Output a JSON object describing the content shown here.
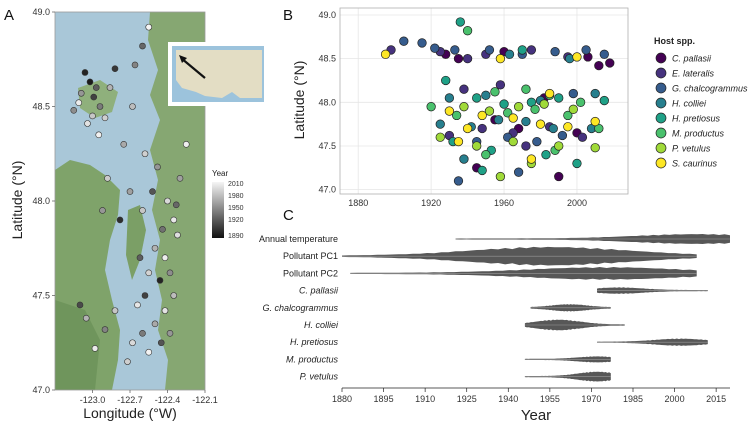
{
  "panels": {
    "a": "A",
    "b": "B",
    "c": "C"
  },
  "colors": {
    "water": "#a9c7d8",
    "land": "#7fa36a",
    "inset_water": "#9cc3dc",
    "inset_land": "#e3ddc4",
    "grid": "#e6e6e6",
    "axis": "#9a9a9a"
  },
  "chart_data": [
    {
      "id": "map",
      "type": "scatter",
      "title": "",
      "xlabel": "Longitude (°W)",
      "ylabel": "Latitude (°N)",
      "xlim": [
        -123.3,
        -122.1
      ],
      "ylim": [
        47.0,
        49.0
      ],
      "xticks": [
        -123.0,
        -122.7,
        -122.4,
        -122.1
      ],
      "xtick_labels": [
        "-123.0",
        "-122.7",
        "-122.4",
        "-122.1"
      ],
      "yticks": [
        47.0,
        47.5,
        48.0,
        48.5,
        49.0
      ],
      "ytick_labels": [
        "47.0",
        "47.5",
        "48.0",
        "48.5",
        "49.0"
      ],
      "legend": {
        "title": "Year",
        "labels": [
          "2010",
          "1980",
          "1950",
          "1920",
          "1890"
        ],
        "range": [
          1890,
          2010
        ],
        "placement": "right"
      },
      "points": [
        {
          "lon": -123.06,
          "lat": 48.68,
          "year": 1900
        },
        {
          "lon": -123.02,
          "lat": 48.63,
          "year": 1895
        },
        {
          "lon": -122.97,
          "lat": 48.6,
          "year": 1930
        },
        {
          "lon": -123.09,
          "lat": 48.57,
          "year": 1960
        },
        {
          "lon": -123.11,
          "lat": 48.52,
          "year": 2005
        },
        {
          "lon": -122.99,
          "lat": 48.55,
          "year": 1915
        },
        {
          "lon": -122.94,
          "lat": 48.5,
          "year": 1945
        },
        {
          "lon": -123.0,
          "lat": 48.45,
          "year": 1985
        },
        {
          "lon": -123.04,
          "lat": 48.41,
          "year": 2000
        },
        {
          "lon": -122.9,
          "lat": 48.44,
          "year": 1990
        },
        {
          "lon": -122.86,
          "lat": 48.6,
          "year": 1975
        },
        {
          "lon": -122.82,
          "lat": 48.7,
          "year": 1910
        },
        {
          "lon": -123.15,
          "lat": 48.48,
          "year": 1955
        },
        {
          "lon": -122.95,
          "lat": 48.35,
          "year": 2008
        },
        {
          "lon": -122.75,
          "lat": 48.3,
          "year": 1970
        },
        {
          "lon": -122.68,
          "lat": 48.5,
          "year": 1980
        },
        {
          "lon": -122.6,
          "lat": 48.82,
          "year": 1935
        },
        {
          "lon": -122.55,
          "lat": 48.92,
          "year": 2010
        },
        {
          "lon": -122.66,
          "lat": 48.72,
          "year": 1950
        },
        {
          "lon": -122.58,
          "lat": 48.25,
          "year": 1990
        },
        {
          "lon": -122.48,
          "lat": 48.18,
          "year": 1960
        },
        {
          "lon": -122.52,
          "lat": 48.05,
          "year": 1925
        },
        {
          "lon": -122.4,
          "lat": 48.0,
          "year": 1995
        },
        {
          "lon": -122.35,
          "lat": 47.9,
          "year": 2003
        },
        {
          "lon": -122.44,
          "lat": 47.85,
          "year": 1940
        },
        {
          "lon": -122.6,
          "lat": 47.95,
          "year": 1985
        },
        {
          "lon": -122.7,
          "lat": 48.05,
          "year": 1965
        },
        {
          "lon": -122.78,
          "lat": 47.9,
          "year": 1905
        },
        {
          "lon": -122.5,
          "lat": 47.75,
          "year": 1975
        },
        {
          "lon": -122.42,
          "lat": 47.7,
          "year": 2006
        },
        {
          "lon": -122.38,
          "lat": 47.62,
          "year": 1955
        },
        {
          "lon": -122.46,
          "lat": 47.58,
          "year": 1900
        },
        {
          "lon": -122.55,
          "lat": 47.62,
          "year": 1992
        },
        {
          "lon": -122.62,
          "lat": 47.7,
          "year": 1930
        },
        {
          "lon": -122.35,
          "lat": 47.5,
          "year": 1980
        },
        {
          "lon": -122.42,
          "lat": 47.42,
          "year": 2001
        },
        {
          "lon": -122.5,
          "lat": 47.35,
          "year": 1970
        },
        {
          "lon": -122.6,
          "lat": 47.3,
          "year": 1945
        },
        {
          "lon": -122.68,
          "lat": 47.25,
          "year": 1995
        },
        {
          "lon": -122.55,
          "lat": 47.2,
          "year": 2009
        },
        {
          "lon": -122.45,
          "lat": 47.25,
          "year": 1925
        },
        {
          "lon": -122.38,
          "lat": 47.3,
          "year": 1960
        },
        {
          "lon": -122.82,
          "lat": 47.42,
          "year": 1985
        },
        {
          "lon": -122.9,
          "lat": 47.32,
          "year": 1950
        },
        {
          "lon": -122.98,
          "lat": 47.22,
          "year": 2004
        },
        {
          "lon": -123.05,
          "lat": 47.38,
          "year": 1975
        },
        {
          "lon": -123.1,
          "lat": 47.45,
          "year": 1920
        },
        {
          "lon": -122.72,
          "lat": 47.15,
          "year": 1990
        },
        {
          "lon": -122.32,
          "lat": 47.82,
          "year": 1998
        },
        {
          "lon": -122.3,
          "lat": 48.12,
          "year": 1965
        },
        {
          "lon": -122.25,
          "lat": 48.3,
          "year": 2007
        },
        {
          "lon": -122.33,
          "lat": 47.98,
          "year": 1935
        },
        {
          "lon": -122.88,
          "lat": 48.12,
          "year": 1988
        },
        {
          "lon": -122.92,
          "lat": 47.95,
          "year": 1960
        },
        {
          "lon": -122.64,
          "lat": 47.45,
          "year": 2002
        },
        {
          "lon": -122.58,
          "lat": 47.5,
          "year": 1915
        }
      ],
      "inset": {
        "description_arrow": true
      }
    },
    {
      "id": "host-lat",
      "type": "scatter",
      "title": "",
      "xlabel": "",
      "ylabel": "Latitude (°N)",
      "xlim": [
        1870,
        2028
      ],
      "ylim": [
        46.95,
        49.08
      ],
      "xticks": [
        1880,
        1920,
        1960,
        2000
      ],
      "xtick_labels": [
        "1880",
        "1920",
        "1960",
        "2000"
      ],
      "yticks": [
        47.0,
        47.5,
        48.0,
        48.5,
        49.0
      ],
      "ytick_labels": [
        "47.0",
        "47.5",
        "48.0",
        "48.5",
        "49.0"
      ],
      "grid": true,
      "legend": {
        "title": "Host spp.",
        "placement": "right"
      },
      "series": [
        {
          "name": "C. pallasii",
          "color": "#440154",
          "points": [
            [
              1928,
              48.55
            ],
            [
              1935,
              48.5
            ],
            [
              1960,
              48.58
            ],
            [
              2012,
              48.42
            ],
            [
              2018,
              48.45
            ],
            [
              1968,
              47.7
            ],
            [
              1990,
              47.15
            ],
            [
              2000,
              47.65
            ],
            [
              1945,
              47.25
            ],
            [
              1982,
              48.05
            ],
            [
              2006,
              48.52
            ],
            [
              1955,
              47.8
            ]
          ]
        },
        {
          "name": "E. lateralis",
          "color": "#46327e",
          "points": [
            [
              1898,
              48.6
            ],
            [
              1925,
              48.58
            ],
            [
              1940,
              48.5
            ],
            [
              1950,
              48.55
            ],
            [
              1975,
              48.6
            ],
            [
              1995,
              48.52
            ],
            [
              1930,
              47.62
            ],
            [
              1948,
              47.7
            ],
            [
              1965,
              47.65
            ],
            [
              1985,
              47.72
            ],
            [
              1938,
              48.15
            ],
            [
              2003,
              47.6
            ],
            [
              1972,
              47.5
            ],
            [
              1958,
              48.2
            ]
          ]
        },
        {
          "name": "G. chalcogrammus",
          "color": "#365c8d",
          "points": [
            [
              1905,
              48.7
            ],
            [
              1915,
              48.68
            ],
            [
              1922,
              48.62
            ],
            [
              1933,
              48.6
            ],
            [
              1952,
              48.6
            ],
            [
              1970,
              48.55
            ],
            [
              1988,
              48.58
            ],
            [
              2005,
              48.6
            ],
            [
              2015,
              48.55
            ],
            [
              1945,
              47.55
            ],
            [
              1962,
              47.6
            ],
            [
              1978,
              47.55
            ],
            [
              1992,
              47.62
            ],
            [
              1935,
              47.1
            ],
            [
              1968,
              47.2
            ],
            [
              1998,
              48.1
            ]
          ]
        },
        {
          "name": "H. colliei",
          "color": "#277f8e",
          "points": [
            [
              1925,
              47.75
            ],
            [
              1942,
              47.72
            ],
            [
              1957,
              47.8
            ],
            [
              1972,
              47.78
            ],
            [
              1987,
              47.7
            ],
            [
              2008,
              47.7
            ],
            [
              1930,
              48.05
            ],
            [
              1950,
              48.08
            ],
            [
              1980,
              48.02
            ],
            [
              2010,
              48.1
            ],
            [
              1963,
              48.55
            ],
            [
              1996,
              48.5
            ],
            [
              1938,
              47.35
            ]
          ]
        },
        {
          "name": "H. pretiosus",
          "color": "#1fa187",
          "points": [
            [
              1936,
              48.92
            ],
            [
              1928,
              48.25
            ],
            [
              1945,
              48.05
            ],
            [
              1960,
              47.98
            ],
            [
              1975,
              48.0
            ],
            [
              1990,
              48.05
            ],
            [
              2015,
              48.02
            ],
            [
              1932,
              47.55
            ],
            [
              1953,
              47.45
            ],
            [
              1983,
              47.4
            ],
            [
              2000,
              47.3
            ],
            [
              1948,
              47.22
            ],
            [
              1970,
              48.6
            ]
          ]
        },
        {
          "name": "M. productus",
          "color": "#4ac16d",
          "points": [
            [
              1940,
              48.82
            ],
            [
              1955,
              48.12
            ],
            [
              1972,
              48.15
            ],
            [
              1985,
              48.08
            ],
            [
              2002,
              48.0
            ],
            [
              1934,
              47.85
            ],
            [
              1962,
              47.88
            ],
            [
              1977,
              47.92
            ],
            [
              1995,
              47.85
            ],
            [
              1950,
              47.4
            ],
            [
              1988,
              47.45
            ],
            [
              2012,
              47.7
            ],
            [
              1920,
              47.95
            ]
          ]
        },
        {
          "name": "P. vetulus",
          "color": "#a0da39",
          "points": [
            [
              1938,
              47.95
            ],
            [
              1952,
              47.9
            ],
            [
              1968,
              47.95
            ],
            [
              1982,
              47.98
            ],
            [
              1998,
              47.92
            ],
            [
              1945,
              47.5
            ],
            [
              1965,
              47.55
            ],
            [
              1990,
              47.5
            ],
            [
              2010,
              47.48
            ],
            [
              1925,
              47.6
            ],
            [
              1975,
              47.3
            ],
            [
              1958,
              47.15
            ]
          ]
        },
        {
          "name": "S. caurinus",
          "color": "#fde725",
          "points": [
            [
              1895,
              48.55
            ],
            [
              1930,
              47.9
            ],
            [
              1948,
              47.85
            ],
            [
              1965,
              47.82
            ],
            [
              1980,
              47.75
            ],
            [
              1995,
              47.72
            ],
            [
              2010,
              47.78
            ],
            [
              1940,
              47.7
            ],
            [
              1985,
              48.1
            ],
            [
              1958,
              48.5
            ],
            [
              2000,
              48.52
            ],
            [
              1975,
              47.35
            ],
            [
              1935,
              47.55
            ]
          ]
        }
      ]
    },
    {
      "id": "timeline",
      "type": "area",
      "title": "",
      "xlabel": "Year",
      "xlim": [
        1880,
        2020
      ],
      "xticks": [
        1880,
        1895,
        1910,
        1925,
        1940,
        1955,
        1970,
        1985,
        2000,
        2015
      ],
      "xtick_labels": [
        "1880",
        "1895",
        "1910",
        "1925",
        "1940",
        "1955",
        "1970",
        "1985",
        "2000",
        "2015"
      ],
      "rows": [
        {
          "label": "Annual temperature",
          "italic": false,
          "start": 1921,
          "end": 2020,
          "peak": 2008,
          "maxw": 0.5
        },
        {
          "label": "Pollutant PC1",
          "italic": false,
          "start": 1880,
          "end": 2008,
          "peak": 1955,
          "maxw": 1.0
        },
        {
          "label": "Pollutant PC2",
          "italic": false,
          "start": 1883,
          "end": 2008,
          "peak": 1975,
          "maxw": 0.65
        },
        {
          "label": "C. pallasii",
          "italic": true,
          "start": 1972,
          "end": 2012,
          "peak": 1980,
          "maxw": 0.3
        },
        {
          "label": "G. chalcogrammus",
          "italic": true,
          "start": 1948,
          "end": 1977,
          "peak": 1962,
          "maxw": 0.35
        },
        {
          "label": "H. colliei",
          "italic": true,
          "start": 1946,
          "end": 1982,
          "peak": 1958,
          "maxw": 0.55
        },
        {
          "label": "H. pretiosus",
          "italic": true,
          "start": 1972,
          "end": 2012,
          "peak": 2002,
          "maxw": 0.35
        },
        {
          "label": "M. productus",
          "italic": true,
          "start": 1946,
          "end": 1977,
          "peak": 1972,
          "maxw": 0.28
        },
        {
          "label": "P. vetulus",
          "italic": true,
          "start": 1946,
          "end": 1977,
          "peak": 1972,
          "maxw": 0.5
        }
      ]
    }
  ]
}
